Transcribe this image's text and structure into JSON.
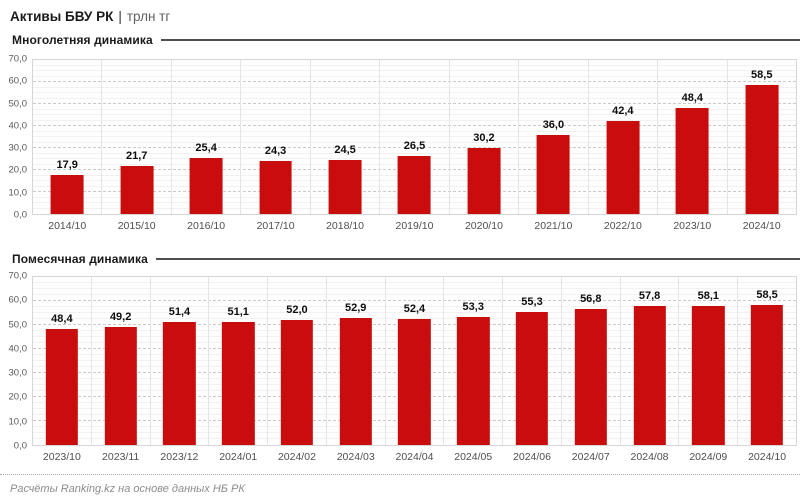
{
  "header": {
    "title": "Активы БВУ РК",
    "separator": "|",
    "subtitle": "трлн тг"
  },
  "sections": [
    {
      "label": "Многолетняя динамика"
    },
    {
      "label": "Помесячная динамика"
    }
  ],
  "footer": {
    "text": "Расчёты Ranking.kz на основе данных НБ РК"
  },
  "colors": {
    "bar": "#c90d0d",
    "axis_text": "#595959",
    "section_line": "#4e4e4e"
  },
  "chart_data": [
    {
      "type": "bar",
      "title": "Многолетняя динамика",
      "categories": [
        "2014/10",
        "2015/10",
        "2016/10",
        "2017/10",
        "2018/10",
        "2019/10",
        "2020/10",
        "2021/10",
        "2022/10",
        "2023/10",
        "2024/10"
      ],
      "values": [
        17.9,
        21.7,
        25.4,
        24.3,
        24.5,
        26.5,
        30.2,
        36.0,
        42.4,
        48.4,
        58.5
      ],
      "value_labels": [
        "17,9",
        "21,7",
        "25,4",
        "24,3",
        "24,5",
        "26,5",
        "30,2",
        "36,0",
        "42,4",
        "48,4",
        "58,5"
      ],
      "xlabel": "",
      "ylabel": "",
      "ylim": [
        0,
        70
      ],
      "ytick_step": 10,
      "ytick_minor_step": 2.5,
      "ytick_labels": [
        "0,0",
        "10,0",
        "20,0",
        "30,0",
        "40,0",
        "50,0",
        "60,0",
        "70,0"
      ],
      "grid": true,
      "legend": "none",
      "bar_color": "#c90d0d"
    },
    {
      "type": "bar",
      "title": "Помесячная динамика",
      "categories": [
        "2023/10",
        "2023/11",
        "2023/12",
        "2024/01",
        "2024/02",
        "2024/03",
        "2024/04",
        "2024/05",
        "2024/06",
        "2024/07",
        "2024/08",
        "2024/09",
        "2024/10"
      ],
      "values": [
        48.4,
        49.2,
        51.4,
        51.1,
        52.0,
        52.9,
        52.4,
        53.3,
        55.3,
        56.8,
        57.8,
        58.1,
        58.5
      ],
      "value_labels": [
        "48,4",
        "49,2",
        "51,4",
        "51,1",
        "52,0",
        "52,9",
        "52,4",
        "53,3",
        "55,3",
        "56,8",
        "57,8",
        "58,1",
        "58,5"
      ],
      "xlabel": "",
      "ylabel": "",
      "ylim": [
        0,
        70
      ],
      "ytick_step": 10,
      "ytick_minor_step": 2.5,
      "ytick_labels": [
        "0,0",
        "10,0",
        "20,0",
        "30,0",
        "40,0",
        "50,0",
        "60,0",
        "70,0"
      ],
      "grid": true,
      "legend": "none",
      "bar_color": "#c90d0d"
    }
  ]
}
